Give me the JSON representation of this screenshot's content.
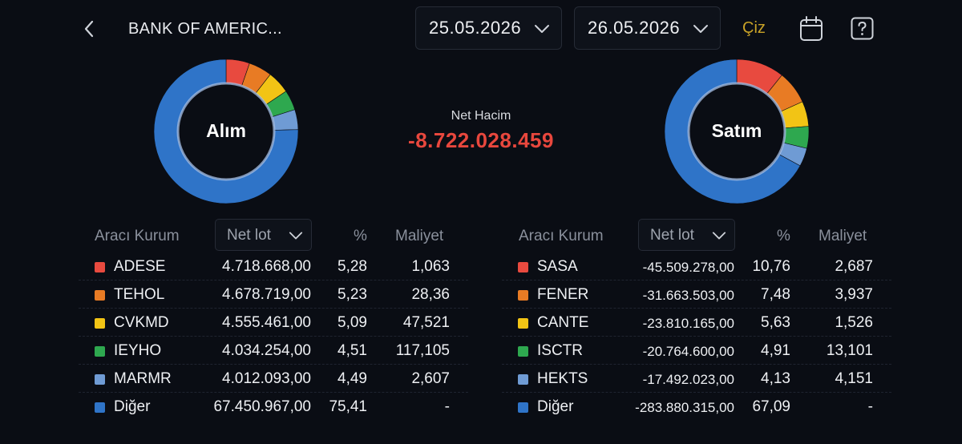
{
  "header": {
    "title": "BANK OF AMERIC...",
    "start_date": "25.05.2026",
    "end_date": "26.05.2026",
    "draw_label": "Çiz"
  },
  "colors": {
    "background": "#0a0d14",
    "negative": "#e8473d",
    "accent": "#c9a227",
    "series": [
      "#e84a3f",
      "#e87b24",
      "#f2c415",
      "#2ea84f",
      "#6f9bd4",
      "#2f74c8"
    ]
  },
  "net_volume": {
    "label": "Net Hacim",
    "value": "-8.722.028.459"
  },
  "buy": {
    "donut_label": "Alım",
    "col_broker": "Aracı Kurum",
    "sort_label": "Net lot",
    "col_pct": "%",
    "col_cost": "Maliyet",
    "rows": [
      {
        "name": "ADESE",
        "lot": "4.718.668,00",
        "pct": "5,28",
        "cost": "1,063"
      },
      {
        "name": "TEHOL",
        "lot": "4.678.719,00",
        "pct": "5,23",
        "cost": "28,36"
      },
      {
        "name": "CVKMD",
        "lot": "4.555.461,00",
        "pct": "5,09",
        "cost": "47,521"
      },
      {
        "name": "IEYHO",
        "lot": "4.034.254,00",
        "pct": "4,51",
        "cost": "117,105"
      },
      {
        "name": "MARMR",
        "lot": "4.012.093,00",
        "pct": "4,49",
        "cost": "2,607"
      },
      {
        "name": "Diğer",
        "lot": "67.450.967,00",
        "pct": "75,41",
        "cost": "-"
      }
    ],
    "chart_data": {
      "type": "pie",
      "categories": [
        "ADESE",
        "TEHOL",
        "CVKMD",
        "IEYHO",
        "MARMR",
        "Diğer"
      ],
      "values": [
        5.28,
        5.23,
        5.09,
        4.51,
        4.49,
        75.41
      ]
    }
  },
  "sell": {
    "donut_label": "Satım",
    "col_broker": "Aracı Kurum",
    "sort_label": "Net lot",
    "col_pct": "%",
    "col_cost": "Maliyet",
    "rows": [
      {
        "name": "SASA",
        "lot": "-45.509.278,00",
        "pct": "10,76",
        "cost": "2,687"
      },
      {
        "name": "FENER",
        "lot": "-31.663.503,00",
        "pct": "7,48",
        "cost": "3,937"
      },
      {
        "name": "CANTE",
        "lot": "-23.810.165,00",
        "pct": "5,63",
        "cost": "1,526"
      },
      {
        "name": "ISCTR",
        "lot": "-20.764.600,00",
        "pct": "4,91",
        "cost": "13,101"
      },
      {
        "name": "HEKTS",
        "lot": "-17.492.023,00",
        "pct": "4,13",
        "cost": "4,151"
      },
      {
        "name": "Diğer",
        "lot": "-283.880.315,00",
        "pct": "67,09",
        "cost": "-"
      }
    ],
    "chart_data": {
      "type": "pie",
      "categories": [
        "SASA",
        "FENER",
        "CANTE",
        "ISCTR",
        "HEKTS",
        "Diğer"
      ],
      "values": [
        10.76,
        7.48,
        5.63,
        4.91,
        4.13,
        67.09
      ]
    }
  }
}
